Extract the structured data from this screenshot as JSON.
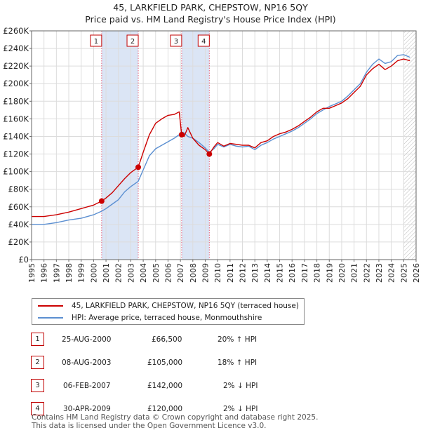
{
  "title": "45, LARKFIELD PARK, CHEPSTOW, NP16 5QY",
  "subtitle": "Price paid vs. HM Land Registry's House Price Index (HPI)",
  "colors": {
    "price_line": "#cc0000",
    "hpi_line": "#5b8fd1",
    "shade": "#dbe5f5",
    "sale_vline": "#e0607a",
    "projection_hatch": "#bbbbbb"
  },
  "legend": {
    "price_label": "45, LARKFIELD PARK, CHEPSTOW, NP16 5QY (terraced house)",
    "hpi_label": "HPI: Average price, terraced house, Monmouthshire"
  },
  "sales": [
    {
      "num": "1",
      "date": "25-AUG-2000",
      "price": "£66,500",
      "hpi": "20% ↑ HPI"
    },
    {
      "num": "2",
      "date": "08-AUG-2003",
      "price": "£105,000",
      "hpi": "18% ↑ HPI"
    },
    {
      "num": "3",
      "date": "06-FEB-2007",
      "price": "£142,000",
      "hpi": "2% ↓ HPI"
    },
    {
      "num": "4",
      "date": "30-APR-2009",
      "price": "£120,000",
      "hpi": "2% ↓ HPI"
    }
  ],
  "footer": {
    "line1": "Contains HM Land Registry data © Crown copyright and database right 2025.",
    "line2": "This data is licensed under the Open Government Licence v3.0."
  },
  "chart_data": {
    "type": "line",
    "title": "45, LARKFIELD PARK, CHEPSTOW, NP16 5QY",
    "subtitle": "Price paid vs. HM Land Registry's House Price Index (HPI)",
    "xlabel": "",
    "ylabel": "",
    "xlim": [
      1995.0,
      2026.0
    ],
    "ylim": [
      0,
      260000
    ],
    "grid": true,
    "y_ticks": [
      0,
      20000,
      40000,
      60000,
      80000,
      100000,
      120000,
      140000,
      160000,
      180000,
      200000,
      220000,
      240000,
      260000
    ],
    "y_tick_labels": [
      "£0",
      "£20K",
      "£40K",
      "£60K",
      "£80K",
      "£100K",
      "£120K",
      "£140K",
      "£160K",
      "£180K",
      "£200K",
      "£220K",
      "£240K",
      "£260K"
    ],
    "x_ticks": [
      1995,
      1996,
      1997,
      1998,
      1999,
      2000,
      2001,
      2002,
      2003,
      2004,
      2005,
      2006,
      2007,
      2008,
      2009,
      2010,
      2011,
      2012,
      2013,
      2014,
      2015,
      2016,
      2017,
      2018,
      2019,
      2020,
      2021,
      2022,
      2023,
      2024,
      2025,
      2026
    ],
    "x_tick_labels": [
      "1995",
      "1996",
      "1997",
      "1998",
      "1999",
      "2000",
      "2001",
      "2002",
      "2003",
      "2004",
      "2005",
      "2006",
      "2007",
      "2008",
      "2009",
      "2010",
      "2011",
      "2012",
      "2013",
      "2014",
      "2015",
      "2016",
      "2017",
      "2018",
      "2019",
      "2020",
      "2021",
      "2022",
      "2023",
      "2024",
      "2025",
      "2026"
    ],
    "shaded_periods": [
      [
        2000.65,
        2003.6
      ],
      [
        2007.1,
        2009.33
      ]
    ],
    "projection_start": 2025.0,
    "sale_markers": [
      {
        "label": "1",
        "x": 2000.65,
        "y": 66500
      },
      {
        "label": "2",
        "x": 2003.6,
        "y": 105000
      },
      {
        "label": "3",
        "x": 2007.1,
        "y": 142000
      },
      {
        "label": "4",
        "x": 2009.33,
        "y": 120000
      }
    ],
    "series": [
      {
        "name": "45, LARKFIELD PARK, CHEPSTOW, NP16 5QY (terraced house)",
        "x": [
          1995.0,
          1996.0,
          1997.0,
          1998.0,
          1999.0,
          2000.0,
          2000.65,
          2001.0,
          2001.5,
          2002.0,
          2002.5,
          2003.0,
          2003.6,
          2004.0,
          2004.5,
          2005.0,
          2005.5,
          2006.0,
          2006.5,
          2006.9,
          2007.1,
          2007.3,
          2007.6,
          2008.0,
          2008.5,
          2009.0,
          2009.33,
          2009.7,
          2010.0,
          2010.5,
          2011.0,
          2011.5,
          2012.0,
          2012.5,
          2013.0,
          2013.5,
          2014.0,
          2014.5,
          2015.0,
          2015.5,
          2016.0,
          2016.5,
          2017.0,
          2017.5,
          2018.0,
          2018.5,
          2019.0,
          2019.5,
          2020.0,
          2020.5,
          2021.0,
          2021.5,
          2022.0,
          2022.5,
          2023.0,
          2023.5,
          2024.0,
          2024.5,
          2025.0,
          2025.5
        ],
        "y": [
          49000,
          49000,
          51000,
          54000,
          58000,
          62000,
          66500,
          70000,
          76000,
          84000,
          92000,
          99000,
          105000,
          122000,
          142000,
          155000,
          160000,
          164000,
          165000,
          168000,
          142000,
          140000,
          150000,
          138000,
          130000,
          125000,
          120000,
          128000,
          133000,
          129000,
          132000,
          131000,
          130000,
          130000,
          127000,
          133000,
          135000,
          140000,
          143000,
          145000,
          148000,
          152000,
          157000,
          162000,
          168000,
          172000,
          172000,
          175000,
          178000,
          183000,
          190000,
          197000,
          210000,
          217000,
          222000,
          216000,
          220000,
          226000,
          228000,
          226000
        ]
      },
      {
        "name": "HPI: Average price, terraced house, Monmouthshire",
        "x": [
          1995.0,
          1996.0,
          1997.0,
          1998.0,
          1999.0,
          2000.0,
          2000.65,
          2001.0,
          2001.5,
          2002.0,
          2002.5,
          2003.0,
          2003.6,
          2004.0,
          2004.5,
          2005.0,
          2005.5,
          2006.0,
          2006.5,
          2006.9,
          2007.1,
          2007.3,
          2007.6,
          2008.0,
          2008.5,
          2009.0,
          2009.33,
          2009.7,
          2010.0,
          2010.5,
          2011.0,
          2011.5,
          2012.0,
          2012.5,
          2013.0,
          2013.5,
          2014.0,
          2014.5,
          2015.0,
          2015.5,
          2016.0,
          2016.5,
          2017.0,
          2017.5,
          2018.0,
          2018.5,
          2019.0,
          2019.5,
          2020.0,
          2020.5,
          2021.0,
          2021.5,
          2022.0,
          2022.5,
          2023.0,
          2023.5,
          2024.0,
          2024.5,
          2025.0,
          2025.5
        ],
        "y": [
          40000,
          40000,
          42000,
          45000,
          47000,
          51000,
          55000,
          58000,
          63000,
          68000,
          77000,
          83000,
          89000,
          102000,
          118000,
          126000,
          130000,
          134000,
          138000,
          142000,
          145000,
          144000,
          140000,
          138000,
          133000,
          127000,
          122000,
          126000,
          131000,
          128000,
          131000,
          129000,
          128000,
          129000,
          125000,
          130000,
          133000,
          137000,
          140000,
          143000,
          146000,
          150000,
          155000,
          160000,
          166000,
          170000,
          174000,
          177000,
          180000,
          186000,
          193000,
          200000,
          213000,
          222000,
          228000,
          223000,
          225000,
          232000,
          233000,
          230000
        ]
      }
    ]
  }
}
